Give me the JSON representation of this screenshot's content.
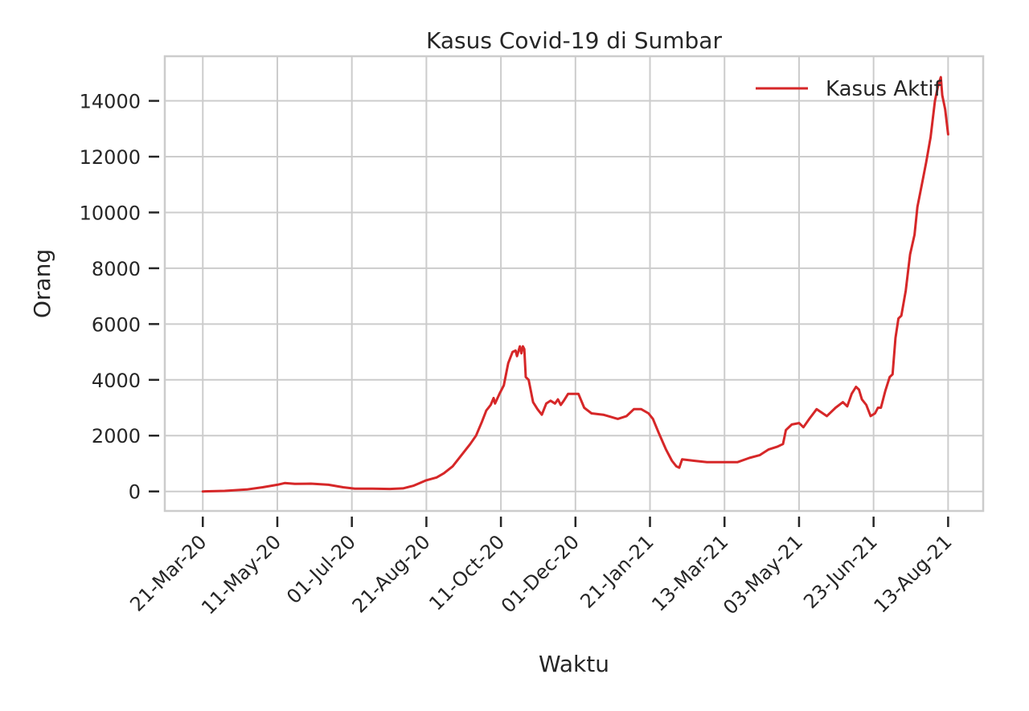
{
  "chart_data": {
    "type": "line",
    "title": "Kasus Covid-19 di Sumbar",
    "xlabel": "Waktu",
    "ylabel": "Orang",
    "ylim": [
      -700,
      15600
    ],
    "xlim": [
      "2020-02-24",
      "2021-09-06"
    ],
    "grid": true,
    "legend_position": "top-right",
    "x_ticks": [
      {
        "date": "2020-03-21",
        "label": "21-Mar-20"
      },
      {
        "date": "2020-05-11",
        "label": "11-May-20"
      },
      {
        "date": "2020-07-01",
        "label": "01-Jul-20"
      },
      {
        "date": "2020-08-21",
        "label": "21-Aug-20"
      },
      {
        "date": "2020-10-11",
        "label": "11-Oct-20"
      },
      {
        "date": "2020-12-01",
        "label": "01-Dec-20"
      },
      {
        "date": "2021-01-21",
        "label": "21-Jan-21"
      },
      {
        "date": "2021-03-13",
        "label": "13-Mar-21"
      },
      {
        "date": "2021-05-03",
        "label": "03-May-21"
      },
      {
        "date": "2021-06-23",
        "label": "23-Jun-21"
      },
      {
        "date": "2021-08-13",
        "label": "13-Aug-21"
      }
    ],
    "y_ticks": [
      0,
      2000,
      4000,
      6000,
      8000,
      10000,
      12000,
      14000
    ],
    "series": [
      {
        "name": "Kasus Aktif",
        "color": "#d62728",
        "points": [
          [
            "2020-03-21",
            0
          ],
          [
            "2020-04-05",
            20
          ],
          [
            "2020-04-20",
            70
          ],
          [
            "2020-05-01",
            150
          ],
          [
            "2020-05-11",
            240
          ],
          [
            "2020-05-16",
            300
          ],
          [
            "2020-05-23",
            270
          ],
          [
            "2020-06-03",
            280
          ],
          [
            "2020-06-15",
            240
          ],
          [
            "2020-06-25",
            150
          ],
          [
            "2020-07-03",
            100
          ],
          [
            "2020-07-15",
            100
          ],
          [
            "2020-07-27",
            90
          ],
          [
            "2020-08-05",
            110
          ],
          [
            "2020-08-12",
            200
          ],
          [
            "2020-08-21",
            400
          ],
          [
            "2020-08-28",
            500
          ],
          [
            "2020-09-02",
            650
          ],
          [
            "2020-09-08",
            900
          ],
          [
            "2020-09-14",
            1300
          ],
          [
            "2020-09-20",
            1700
          ],
          [
            "2020-09-24",
            2000
          ],
          [
            "2020-09-28",
            2500
          ],
          [
            "2020-10-01",
            2900
          ],
          [
            "2020-10-04",
            3100
          ],
          [
            "2020-10-06",
            3350
          ],
          [
            "2020-10-07",
            3150
          ],
          [
            "2020-10-10",
            3500
          ],
          [
            "2020-10-13",
            3800
          ],
          [
            "2020-10-16",
            4600
          ],
          [
            "2020-10-19",
            5000
          ],
          [
            "2020-10-21",
            5050
          ],
          [
            "2020-10-22",
            4850
          ],
          [
            "2020-10-24",
            5200
          ],
          [
            "2020-10-25",
            4950
          ],
          [
            "2020-10-26",
            5200
          ],
          [
            "2020-10-27",
            5100
          ],
          [
            "2020-10-28",
            4100
          ],
          [
            "2020-10-30",
            4000
          ],
          [
            "2020-11-02",
            3200
          ],
          [
            "2020-11-05",
            2950
          ],
          [
            "2020-11-08",
            2750
          ],
          [
            "2020-11-11",
            3150
          ],
          [
            "2020-11-14",
            3250
          ],
          [
            "2020-11-17",
            3150
          ],
          [
            "2020-11-19",
            3300
          ],
          [
            "2020-11-21",
            3100
          ],
          [
            "2020-11-23",
            3250
          ],
          [
            "2020-11-26",
            3500
          ],
          [
            "2020-11-29",
            3500
          ],
          [
            "2020-12-03",
            3500
          ],
          [
            "2020-12-07",
            3000
          ],
          [
            "2020-12-12",
            2800
          ],
          [
            "2020-12-20",
            2750
          ],
          [
            "2020-12-30",
            2600
          ],
          [
            "2021-01-05",
            2700
          ],
          [
            "2021-01-10",
            2950
          ],
          [
            "2021-01-15",
            2950
          ],
          [
            "2021-01-20",
            2800
          ],
          [
            "2021-01-23",
            2600
          ],
          [
            "2021-01-27",
            2100
          ],
          [
            "2021-02-01",
            1500
          ],
          [
            "2021-02-05",
            1100
          ],
          [
            "2021-02-08",
            900
          ],
          [
            "2021-02-10",
            850
          ],
          [
            "2021-02-12",
            1150
          ],
          [
            "2021-02-20",
            1100
          ],
          [
            "2021-03-01",
            1050
          ],
          [
            "2021-03-13",
            1050
          ],
          [
            "2021-03-22",
            1050
          ],
          [
            "2021-03-30",
            1200
          ],
          [
            "2021-04-06",
            1300
          ],
          [
            "2021-04-12",
            1500
          ],
          [
            "2021-04-18",
            1600
          ],
          [
            "2021-04-22",
            1700
          ],
          [
            "2021-04-24",
            2200
          ],
          [
            "2021-04-28",
            2400
          ],
          [
            "2021-05-03",
            2450
          ],
          [
            "2021-05-06",
            2300
          ],
          [
            "2021-05-10",
            2600
          ],
          [
            "2021-05-15",
            2950
          ],
          [
            "2021-05-22",
            2700
          ],
          [
            "2021-05-28",
            3000
          ],
          [
            "2021-06-02",
            3200
          ],
          [
            "2021-06-05",
            3050
          ],
          [
            "2021-06-08",
            3500
          ],
          [
            "2021-06-11",
            3750
          ],
          [
            "2021-06-13",
            3650
          ],
          [
            "2021-06-15",
            3300
          ],
          [
            "2021-06-18",
            3100
          ],
          [
            "2021-06-21",
            2700
          ],
          [
            "2021-06-24",
            2800
          ],
          [
            "2021-06-26",
            3000
          ],
          [
            "2021-06-28",
            3000
          ],
          [
            "2021-07-01",
            3600
          ],
          [
            "2021-07-04",
            4100
          ],
          [
            "2021-07-06",
            4200
          ],
          [
            "2021-07-08",
            5500
          ],
          [
            "2021-07-10",
            6200
          ],
          [
            "2021-07-12",
            6300
          ],
          [
            "2021-07-15",
            7200
          ],
          [
            "2021-07-18",
            8500
          ],
          [
            "2021-07-21",
            9200
          ],
          [
            "2021-07-23",
            10200
          ],
          [
            "2021-07-26",
            11000
          ],
          [
            "2021-07-29",
            11800
          ],
          [
            "2021-08-01",
            12700
          ],
          [
            "2021-08-04",
            14000
          ],
          [
            "2021-08-06",
            14500
          ],
          [
            "2021-08-08",
            14850
          ],
          [
            "2021-08-09",
            14200
          ],
          [
            "2021-08-11",
            13700
          ],
          [
            "2021-08-13",
            12800
          ]
        ]
      }
    ]
  }
}
